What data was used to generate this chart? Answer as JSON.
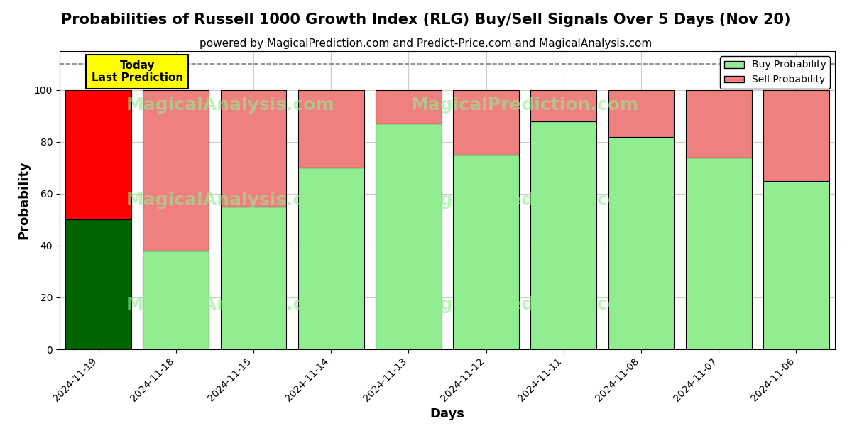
{
  "title": "Probabilities of Russell 1000 Growth Index (RLG) Buy/Sell Signals Over 5 Days (Nov 20)",
  "subtitle": "powered by MagicalPrediction.com and Predict-Price.com and MagicalAnalysis.com",
  "xlabel": "Days",
  "ylabel": "Probability",
  "categories": [
    "2024-11-19",
    "2024-11-18",
    "2024-11-15",
    "2024-11-14",
    "2024-11-13",
    "2024-11-12",
    "2024-11-11",
    "2024-11-08",
    "2024-11-07",
    "2024-11-06"
  ],
  "buy_values": [
    50,
    38,
    55,
    70,
    87,
    75,
    88,
    82,
    74,
    65
  ],
  "sell_values": [
    50,
    62,
    45,
    30,
    13,
    25,
    12,
    18,
    26,
    35
  ],
  "today_index": 0,
  "buy_color_today": "#006400",
  "sell_color_today": "#ff0000",
  "buy_color_normal": "#90EE90",
  "sell_color_normal": "#F08080",
  "bar_edge_color": "#000000",
  "ylim": [
    0,
    115
  ],
  "yticks": [
    0,
    20,
    40,
    60,
    80,
    100
  ],
  "dashed_line_y": 110,
  "watermark_text1": "MagicalAnalysis.com",
  "watermark_text2": "MagicalPrediction.com",
  "background_color": "#ffffff",
  "grid_color": "#cccccc",
  "today_label": "Today\nLast Prediction",
  "today_label_bg": "#ffff00",
  "legend_buy": "Buy Probability",
  "legend_sell": "Sell Probability",
  "title_fontsize": 15,
  "subtitle_fontsize": 11,
  "axis_label_fontsize": 13,
  "tick_fontsize": 10
}
